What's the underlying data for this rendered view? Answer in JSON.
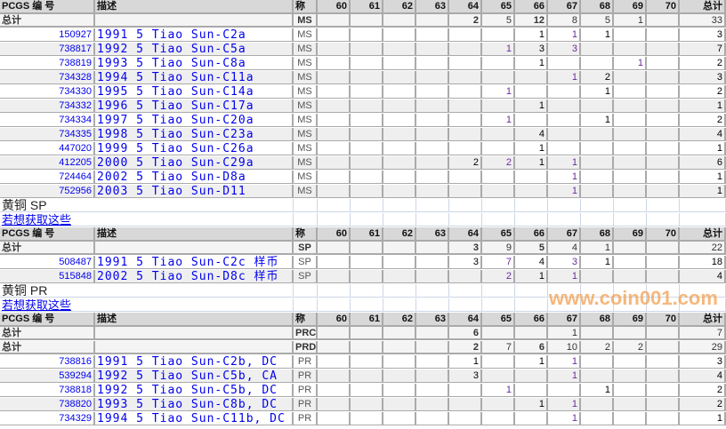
{
  "columns": [
    "PCGS 编 号",
    "描述",
    "称",
    "60",
    "61",
    "62",
    "63",
    "64",
    "65",
    "66",
    "67",
    "68",
    "69",
    "70",
    "总计"
  ],
  "sections": [
    {
      "title": "",
      "link": "",
      "totals": [
        {
          "label": "总计",
          "grade": "MS",
          "values": [
            "",
            "",
            "",
            "",
            "2",
            "5",
            "12",
            "8",
            "5",
            "1",
            ""
          ],
          "total": "33"
        }
      ],
      "rows": [
        {
          "id": "150927",
          "desc": "1991 5 Tiao Sun-C2a",
          "grade": "MS",
          "values": [
            "",
            "",
            "",
            "",
            "",
            "",
            "1",
            "1",
            "1",
            "",
            ""
          ],
          "total": "3"
        },
        {
          "id": "738817",
          "desc": "1992 5 Tiao Sun-C5a",
          "grade": "MS",
          "values": [
            "",
            "",
            "",
            "",
            "",
            "1",
            "3",
            "3",
            "",
            "",
            ""
          ],
          "total": "7"
        },
        {
          "id": "738819",
          "desc": "1993 5 Tiao Sun-C8a",
          "grade": "MS",
          "values": [
            "",
            "",
            "",
            "",
            "",
            "",
            "1",
            "",
            "",
            "1",
            ""
          ],
          "total": "2"
        },
        {
          "id": "734328",
          "desc": "1994 5 Tiao Sun-C11a",
          "grade": "MS",
          "values": [
            "",
            "",
            "",
            "",
            "",
            "",
            "",
            "1",
            "2",
            "",
            ""
          ],
          "total": "3"
        },
        {
          "id": "734330",
          "desc": "1995 5 Tiao Sun-C14a",
          "grade": "MS",
          "values": [
            "",
            "",
            "",
            "",
            "",
            "1",
            "",
            "",
            "1",
            "",
            ""
          ],
          "total": "2"
        },
        {
          "id": "734332",
          "desc": "1996 5 Tiao Sun-C17a",
          "grade": "MS",
          "values": [
            "",
            "",
            "",
            "",
            "",
            "",
            "1",
            "",
            "",
            "",
            ""
          ],
          "total": "1"
        },
        {
          "id": "734334",
          "desc": "1997 5 Tiao Sun-C20a",
          "grade": "MS",
          "values": [
            "",
            "",
            "",
            "",
            "",
            "1",
            "",
            "",
            "1",
            "",
            ""
          ],
          "total": "2"
        },
        {
          "id": "734335",
          "desc": "1998 5 Tiao Sun-C23a",
          "grade": "MS",
          "values": [
            "",
            "",
            "",
            "",
            "",
            "",
            "4",
            "",
            "",
            "",
            ""
          ],
          "total": "4"
        },
        {
          "id": "447020",
          "desc": "1999 5 Tiao Sun-C26a",
          "grade": "MS",
          "values": [
            "",
            "",
            "",
            "",
            "",
            "",
            "1",
            "",
            "",
            "",
            ""
          ],
          "total": "1"
        },
        {
          "id": "412205",
          "desc": "2000 5 Tiao Sun-C29a",
          "grade": "MS",
          "values": [
            "",
            "",
            "",
            "",
            "2",
            "2",
            "1",
            "1",
            "",
            "",
            ""
          ],
          "total": "6"
        },
        {
          "id": "724464",
          "desc": "2002 5 Tiao Sun-D8a",
          "grade": "MS",
          "values": [
            "",
            "",
            "",
            "",
            "",
            "",
            "",
            "1",
            "",
            "",
            ""
          ],
          "total": "1"
        },
        {
          "id": "752956",
          "desc": "2003 5 Tiao Sun-D11",
          "grade": "MS",
          "values": [
            "",
            "",
            "",
            "",
            "",
            "",
            "",
            "1",
            "",
            "",
            ""
          ],
          "total": "1"
        }
      ]
    },
    {
      "title": "黄铜  SP",
      "link": "若想获取这些",
      "totals": [
        {
          "label": "总计",
          "grade": "SP",
          "values": [
            "",
            "",
            "",
            "",
            "3",
            "9",
            "5",
            "4",
            "1",
            "",
            ""
          ],
          "total": "22"
        }
      ],
      "rows": [
        {
          "id": "508487",
          "desc": "1991 5 Tiao Sun-C2c 样币",
          "grade": "SP",
          "values": [
            "",
            "",
            "",
            "",
            "3",
            "7",
            "4",
            "3",
            "1",
            "",
            ""
          ],
          "total": "18"
        },
        {
          "id": "515848",
          "desc": "2002 5 Tiao Sun-D8c 样币",
          "grade": "SP",
          "values": [
            "",
            "",
            "",
            "",
            "",
            "2",
            "1",
            "1",
            "",
            "",
            ""
          ],
          "total": "4"
        }
      ]
    },
    {
      "title": "黄铜  PR",
      "link": "若想获取这些",
      "totals": [
        {
          "label": "总计",
          "grade": "PRC",
          "values": [
            "",
            "",
            "",
            "",
            "6",
            "",
            "",
            "1",
            "",
            "",
            ""
          ],
          "total": "7"
        },
        {
          "label": "总计",
          "grade": "PRD",
          "values": [
            "",
            "",
            "",
            "",
            "2",
            "7",
            "6",
            "10",
            "2",
            "2",
            ""
          ],
          "total": "29"
        }
      ],
      "rows": [
        {
          "id": "738816",
          "desc": "1991 5 Tiao Sun-C2b, DC",
          "grade": "PR",
          "values": [
            "",
            "",
            "",
            "",
            "1",
            "",
            "1",
            "1",
            "",
            "",
            ""
          ],
          "total": "3"
        },
        {
          "id": "539294",
          "desc": "1992 5 Tiao Sun-C5b, CA",
          "grade": "PR",
          "values": [
            "",
            "",
            "",
            "",
            "3",
            "",
            "",
            "1",
            "",
            "",
            ""
          ],
          "total": "4"
        },
        {
          "id": "738818",
          "desc": "1992 5 Tiao Sun-C5b, DC",
          "grade": "PR",
          "values": [
            "",
            "",
            "",
            "",
            "",
            "1",
            "",
            "",
            "1",
            "",
            ""
          ],
          "total": "2"
        },
        {
          "id": "738820",
          "desc": "1993 5 Tiao Sun-C8b, DC",
          "grade": "PR",
          "values": [
            "",
            "",
            "",
            "",
            "",
            "",
            "1",
            "1",
            "",
            "",
            ""
          ],
          "total": "2"
        },
        {
          "id": "734329",
          "desc": "1994 5 Tiao Sun-C11b, DC",
          "grade": "PR",
          "values": [
            "",
            "",
            "",
            "",
            "",
            "",
            "",
            "1",
            "",
            "",
            ""
          ],
          "total": "1"
        }
      ]
    }
  ],
  "watermark": "www.coin001.com",
  "colors": {
    "link": "#0000ee",
    "header_bg": "#d8d8d8",
    "row_alt": "#efefef",
    "watermark": "#f4a050"
  }
}
